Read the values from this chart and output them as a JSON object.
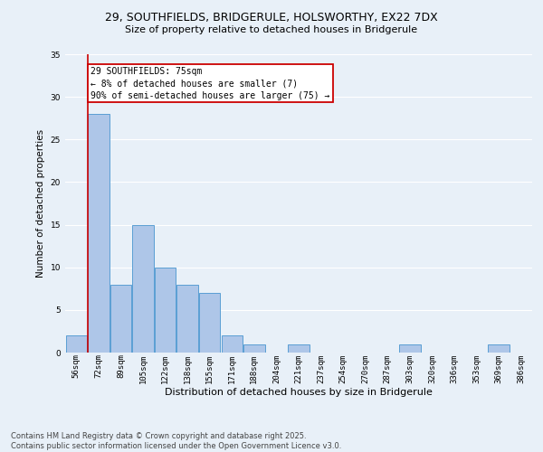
{
  "title_line1": "29, SOUTHFIELDS, BRIDGERULE, HOLSWORTHY, EX22 7DX",
  "title_line2": "Size of property relative to detached houses in Bridgerule",
  "xlabel": "Distribution of detached houses by size in Bridgerule",
  "ylabel": "Number of detached properties",
  "categories": [
    "56sqm",
    "72sqm",
    "89sqm",
    "105sqm",
    "122sqm",
    "138sqm",
    "155sqm",
    "171sqm",
    "188sqm",
    "204sqm",
    "221sqm",
    "237sqm",
    "254sqm",
    "270sqm",
    "287sqm",
    "303sqm",
    "320sqm",
    "336sqm",
    "353sqm",
    "369sqm",
    "386sqm"
  ],
  "values": [
    2,
    28,
    8,
    15,
    10,
    8,
    7,
    2,
    1,
    0,
    1,
    0,
    0,
    0,
    0,
    1,
    0,
    0,
    0,
    1,
    0
  ],
  "bar_color": "#aec6e8",
  "bar_edge_color": "#5a9fd4",
  "background_color": "#e8f0f8",
  "grid_color": "#ffffff",
  "red_line_index": 1,
  "annotation_text": "29 SOUTHFIELDS: 75sqm\n← 8% of detached houses are smaller (7)\n90% of semi-detached houses are larger (75) →",
  "annotation_box_color": "#ffffff",
  "annotation_border_color": "#cc0000",
  "footer_line1": "Contains HM Land Registry data © Crown copyright and database right 2025.",
  "footer_line2": "Contains public sector information licensed under the Open Government Licence v3.0.",
  "ylim": [
    0,
    35
  ],
  "yticks": [
    0,
    5,
    10,
    15,
    20,
    25,
    30,
    35
  ],
  "title_fontsize": 9,
  "subtitle_fontsize": 8,
  "xlabel_fontsize": 8,
  "ylabel_fontsize": 7.5,
  "tick_fontsize": 6.5,
  "annotation_fontsize": 7,
  "footer_fontsize": 6
}
